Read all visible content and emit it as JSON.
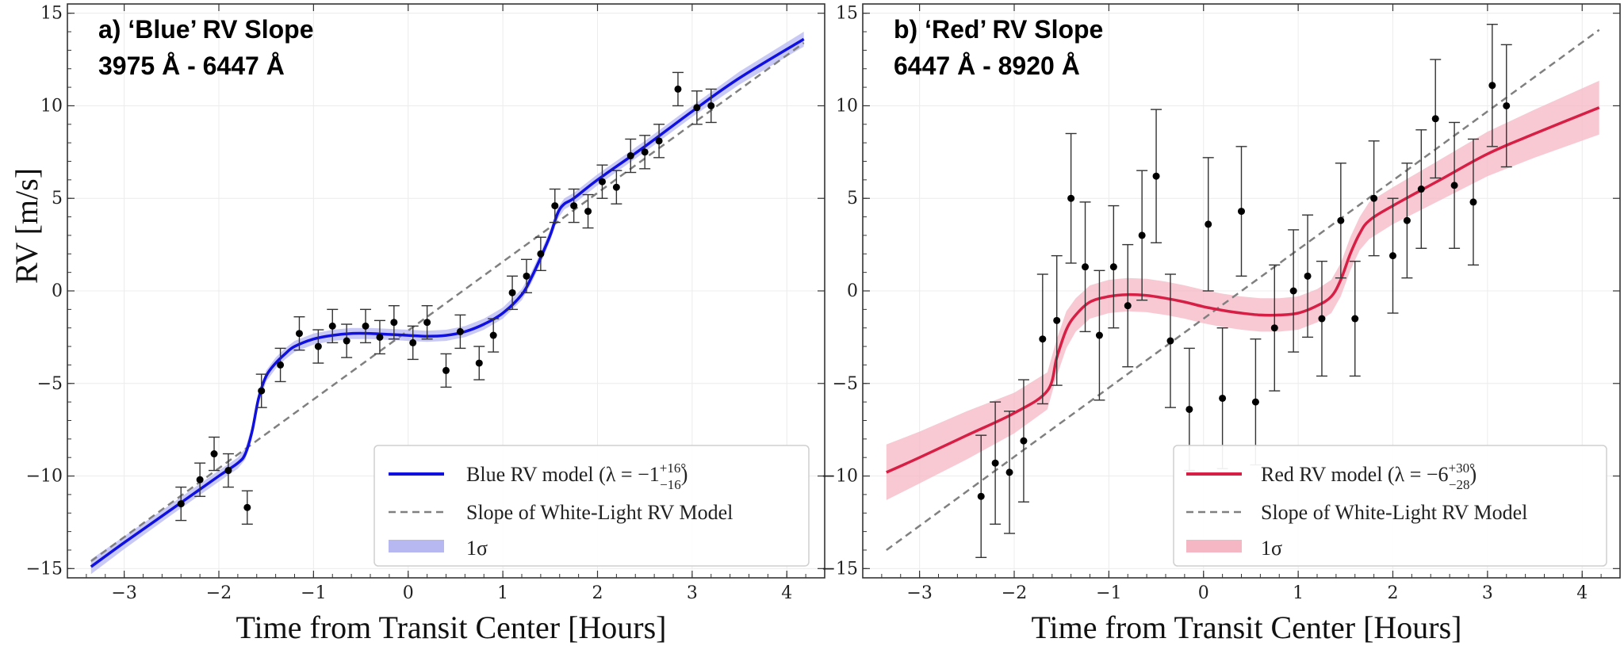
{
  "figure": {
    "ylabel": "RV [m/s]",
    "colors": {
      "grid": "#ececec",
      "axis": "#333333",
      "white_light": "#808080",
      "points": "#000000",
      "errorbars": "#333333"
    }
  },
  "chart_data": [
    {
      "type": "line",
      "name": "blue",
      "title_line1": "a) ‘Blue’ RV Slope",
      "title_line2": "3975 Å - 6447 Å",
      "xlabel": "Time from Transit Center [Hours]",
      "ylabel": "RV [m/s]",
      "xlim": [
        -3.6,
        4.4
      ],
      "ylim": [
        -15.5,
        15.5
      ],
      "xticks": [
        -3,
        -2,
        -1,
        0,
        1,
        2,
        3,
        4
      ],
      "xtick_labels": [
        "−3",
        "−2",
        "−1",
        "0",
        "1",
        "2",
        "3",
        "4"
      ],
      "yticks": [
        -15,
        -10,
        -5,
        0,
        5,
        10,
        15
      ],
      "ytick_labels": [
        "−15",
        "−10",
        "−5",
        "0",
        "5",
        "10",
        "15"
      ],
      "model_color": "#1010e0",
      "band_color": "#b7b7f2",
      "model": {
        "x": [
          -3.35,
          -3.0,
          -2.5,
          -2.0,
          -1.8,
          -1.72,
          -1.65,
          -1.58,
          -1.5,
          -1.4,
          -1.3,
          -1.2,
          -1.0,
          -0.8,
          -0.6,
          -0.4,
          -0.2,
          0.0,
          0.2,
          0.4,
          0.6,
          0.8,
          1.0,
          1.2,
          1.3,
          1.4,
          1.5,
          1.58,
          1.65,
          1.75,
          2.0,
          2.5,
          3.0,
          3.5,
          4.18
        ],
        "y": [
          -14.9,
          -13.6,
          -11.8,
          -10.0,
          -9.3,
          -8.8,
          -7.6,
          -5.8,
          -4.6,
          -3.9,
          -3.4,
          -3.0,
          -2.6,
          -2.4,
          -2.3,
          -2.3,
          -2.35,
          -2.4,
          -2.45,
          -2.4,
          -2.2,
          -1.8,
          -1.2,
          -0.2,
          0.7,
          1.8,
          3.0,
          4.2,
          4.7,
          5.0,
          6.0,
          7.8,
          9.7,
          11.5,
          13.6
        ]
      },
      "band_halfwidth": [
        0.4,
        0.35,
        0.3,
        0.3,
        0.3,
        0.3,
        0.3,
        0.3,
        0.3,
        0.3,
        0.3,
        0.3,
        0.3,
        0.3,
        0.3,
        0.3,
        0.3,
        0.3,
        0.3,
        0.3,
        0.3,
        0.3,
        0.3,
        0.3,
        0.3,
        0.3,
        0.3,
        0.3,
        0.3,
        0.3,
        0.3,
        0.3,
        0.3,
        0.35,
        0.4
      ],
      "white_light": {
        "x": [
          -3.35,
          4.18
        ],
        "y": [
          -14.6,
          13.4
        ]
      },
      "points": {
        "x": [
          -2.4,
          -2.2,
          -2.05,
          -1.9,
          -1.7,
          -1.55,
          -1.35,
          -1.15,
          -0.95,
          -0.8,
          -0.65,
          -0.45,
          -0.3,
          -0.15,
          0.05,
          0.2,
          0.4,
          0.55,
          0.75,
          0.9,
          1.1,
          1.25,
          1.4,
          1.55,
          1.75,
          1.9,
          2.05,
          2.2,
          2.35,
          2.5,
          2.65,
          2.85,
          3.05,
          3.2
        ],
        "y": [
          -11.5,
          -10.2,
          -8.8,
          -9.7,
          -11.7,
          -5.4,
          -4.0,
          -2.3,
          -3.0,
          -1.9,
          -2.7,
          -1.9,
          -2.5,
          -1.7,
          -2.8,
          -1.7,
          -4.3,
          -2.2,
          -3.9,
          -2.4,
          -0.1,
          0.8,
          2.0,
          4.6,
          4.6,
          4.3,
          5.9,
          5.6,
          7.3,
          7.5,
          8.1,
          10.9,
          9.9,
          10.0
        ],
        "err": [
          0.9,
          0.9,
          0.9,
          0.9,
          0.9,
          0.9,
          0.9,
          0.9,
          0.9,
          0.9,
          0.9,
          0.9,
          0.9,
          0.9,
          0.9,
          0.9,
          0.9,
          0.9,
          0.9,
          0.9,
          0.9,
          0.9,
          0.9,
          0.9,
          0.9,
          0.9,
          0.9,
          0.9,
          0.9,
          0.9,
          0.9,
          0.9,
          0.9,
          0.9
        ]
      },
      "legend": {
        "position": "lower-right",
        "model_label": "Blue RV model (λ = −1",
        "model_sup": "+16°",
        "model_sub": "−16",
        "slope_label": "Slope of White-Light RV Model",
        "band_label": "1σ"
      }
    },
    {
      "type": "line",
      "name": "red",
      "title_line1": "b) ‘Red’ RV Slope",
      "title_line2": "6447 Å - 8920 Å",
      "xlabel": "Time from Transit Center [Hours]",
      "ylabel": "RV [m/s]",
      "xlim": [
        -3.6,
        4.4
      ],
      "ylim": [
        -15.5,
        15.5
      ],
      "xticks": [
        -3,
        -2,
        -1,
        0,
        1,
        2,
        3,
        4
      ],
      "xtick_labels": [
        "−3",
        "−2",
        "−1",
        "0",
        "1",
        "2",
        "3",
        "4"
      ],
      "yticks": [
        -15,
        -10,
        -5,
        0,
        5,
        10,
        15
      ],
      "ytick_labels": [
        "−15",
        "−10",
        "−5",
        "0",
        "5",
        "10",
        "15"
      ],
      "model_color": "#d71f45",
      "band_color": "#f6b7c4",
      "model": {
        "x": [
          -3.35,
          -3.0,
          -2.5,
          -2.0,
          -1.65,
          -1.55,
          -1.45,
          -1.35,
          -1.2,
          -1.0,
          -0.8,
          -0.6,
          -0.4,
          -0.2,
          0.0,
          0.2,
          0.4,
          0.6,
          0.8,
          1.0,
          1.2,
          1.35,
          1.45,
          1.55,
          1.65,
          1.75,
          2.0,
          2.5,
          3.0,
          3.5,
          4.18
        ],
        "y": [
          -9.8,
          -9.0,
          -7.8,
          -6.6,
          -5.4,
          -3.6,
          -2.1,
          -1.3,
          -0.6,
          -0.3,
          -0.2,
          -0.25,
          -0.4,
          -0.6,
          -0.85,
          -1.05,
          -1.2,
          -1.3,
          -1.3,
          -1.2,
          -0.8,
          -0.3,
          0.6,
          2.0,
          3.1,
          3.8,
          4.6,
          6.0,
          7.4,
          8.5,
          9.9
        ]
      },
      "band_halfwidth": [
        1.5,
        1.4,
        1.3,
        1.1,
        1.0,
        1.0,
        1.0,
        0.9,
        0.9,
        0.9,
        0.9,
        0.9,
        0.9,
        0.9,
        0.9,
        0.9,
        0.9,
        0.9,
        0.9,
        0.9,
        0.9,
        0.9,
        0.9,
        0.9,
        0.9,
        1.0,
        1.0,
        1.1,
        1.2,
        1.3,
        1.45
      ],
      "white_light": {
        "x": [
          -3.35,
          4.18
        ],
        "y": [
          -14.0,
          14.1
        ]
      },
      "points": {
        "x": [
          -2.35,
          -2.2,
          -2.05,
          -1.9,
          -1.7,
          -1.55,
          -1.4,
          -1.25,
          -1.1,
          -0.95,
          -0.8,
          -0.65,
          -0.5,
          -0.35,
          -0.15,
          0.05,
          0.2,
          0.4,
          0.55,
          0.75,
          0.95,
          1.1,
          1.25,
          1.45,
          1.6,
          1.8,
          2.0,
          2.15,
          2.3,
          2.45,
          2.65,
          2.85,
          3.05,
          3.2
        ],
        "y": [
          -11.1,
          -9.3,
          -9.8,
          -8.1,
          -2.6,
          -1.6,
          5.0,
          1.3,
          -2.4,
          1.3,
          -0.8,
          3.0,
          6.2,
          -2.7,
          -6.4,
          3.6,
          -5.8,
          4.3,
          -6.0,
          -2.0,
          0.0,
          0.8,
          -1.5,
          3.8,
          -1.5,
          5.0,
          1.9,
          3.8,
          5.5,
          9.3,
          5.7,
          4.8,
          11.1,
          10.0
        ],
        "err": [
          3.3,
          3.3,
          3.3,
          3.3,
          3.5,
          3.5,
          3.5,
          3.5,
          3.5,
          3.3,
          3.3,
          3.5,
          3.6,
          3.6,
          3.3,
          3.6,
          3.8,
          3.5,
          3.4,
          3.4,
          3.3,
          3.3,
          3.1,
          3.1,
          3.1,
          3.1,
          3.1,
          3.1,
          3.2,
          3.2,
          3.4,
          3.4,
          3.3,
          3.3
        ]
      },
      "legend": {
        "position": "lower-right",
        "model_label": "Red RV model (λ = −6",
        "model_sup": "+30°",
        "model_sub": "−28",
        "slope_label": "Slope of White-Light RV Model",
        "band_label": "1σ"
      }
    }
  ]
}
